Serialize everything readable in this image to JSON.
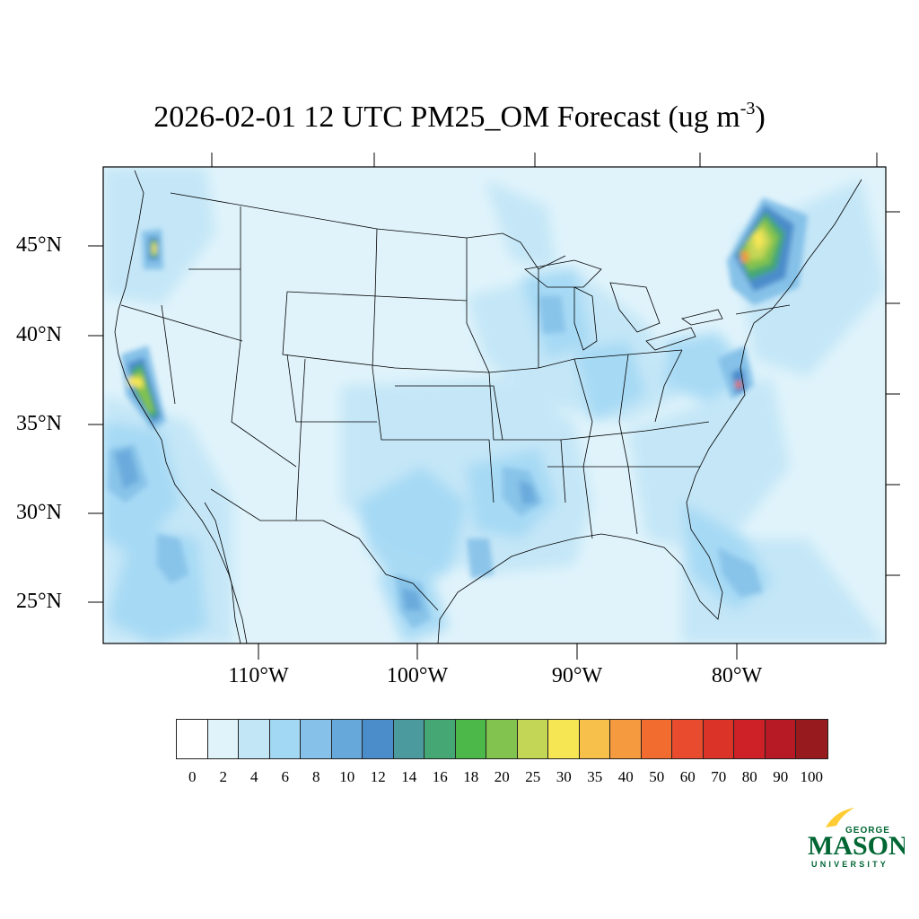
{
  "title": {
    "main": "2026-02-01 12 UTC PM25_OM Forecast (ug m",
    "exponent": "-3",
    "close": ")"
  },
  "latitude_labels": [
    "45°N",
    "40°N",
    "35°N",
    "30°N",
    "25°N"
  ],
  "longitude_labels": [
    "110°W",
    "100°W",
    "90°W",
    "80°W"
  ],
  "colorbar": {
    "labels": [
      "0",
      "2",
      "4",
      "6",
      "8",
      "10",
      "12",
      "14",
      "16",
      "18",
      "20",
      "25",
      "30",
      "35",
      "40",
      "50",
      "60",
      "70",
      "80",
      "90",
      "100"
    ],
    "colors": [
      "#ffffff",
      "#e0f3fb",
      "#c3e6f7",
      "#a3d8f4",
      "#85c1e8",
      "#67a8db",
      "#4b8ccb",
      "#4a9a9e",
      "#45a773",
      "#4cb84a",
      "#82c24e",
      "#c4d655",
      "#f6e654",
      "#f7c04a",
      "#f59a3e",
      "#f26b2f",
      "#e84b2d",
      "#dc3328",
      "#cd2027",
      "#b71a25",
      "#961a1e"
    ]
  },
  "logo": {
    "line1": "GEORGE",
    "line2": "MASON",
    "line3": "UNIVERSITY",
    "colors": {
      "green": "#006633",
      "gold": "#ffcc33"
    }
  }
}
